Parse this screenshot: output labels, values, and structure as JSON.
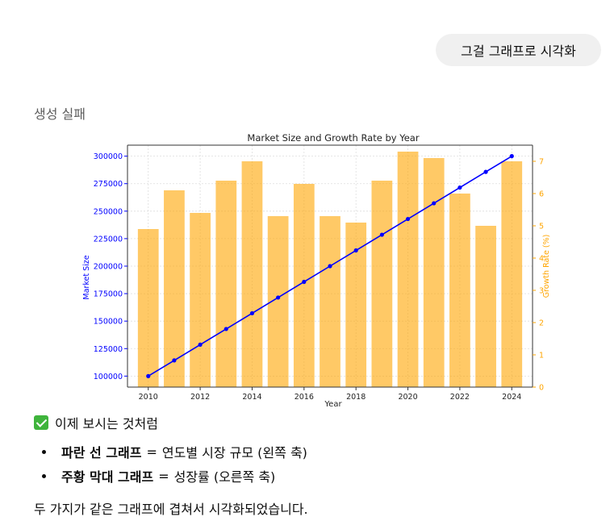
{
  "user_message": "그걸 그래프로 시각화",
  "status": "생성 실패",
  "chart_data": {
    "type": "bar",
    "title": "Market Size and Growth Rate by Year",
    "xlabel": "Year",
    "ylabel": "Market Size",
    "y2label": "Growth Rate (%)",
    "x": [
      2010,
      2011,
      2012,
      2013,
      2014,
      2015,
      2016,
      2017,
      2018,
      2019,
      2020,
      2021,
      2022,
      2023,
      2024
    ],
    "x_ticks": [
      "2010",
      "2012",
      "2014",
      "2016",
      "2018",
      "2020",
      "2022",
      "2024"
    ],
    "y_ticks": [
      "100000",
      "125000",
      "150000",
      "175000",
      "200000",
      "225000",
      "250000",
      "275000",
      "300000"
    ],
    "y2_ticks": [
      "0",
      "1",
      "2",
      "3",
      "4",
      "5",
      "6",
      "7"
    ],
    "ylim": [
      90000,
      310000
    ],
    "y2lim": [
      0,
      7.5
    ],
    "grid": true,
    "series": [
      {
        "name": "Market Size",
        "type": "line",
        "axis": "left",
        "color": "#0000ff",
        "values": [
          100000,
          114286,
          128571,
          142857,
          157143,
          171429,
          185714,
          200000,
          214286,
          228571,
          242857,
          257143,
          271429,
          285714,
          300000
        ]
      },
      {
        "name": "Growth Rate",
        "type": "bar",
        "axis": "right",
        "color": "#ffa500",
        "values": [
          4.9,
          6.1,
          5.4,
          6.4,
          7.0,
          5.3,
          6.3,
          5.3,
          5.1,
          6.4,
          7.3,
          7.1,
          6.0,
          5.0,
          7.0
        ]
      }
    ]
  },
  "summary": {
    "check_icon": "check-mark-button-icon",
    "intro": "이제 보시는 것처럼",
    "items": [
      {
        "label": "파란 선 그래프",
        "sep": "=",
        "text": "연도별 시장 규모 (왼쪽 축)"
      },
      {
        "label": "주황 막대 그래프",
        "sep": "=",
        "text": "성장률 (오른쪽 축)"
      }
    ],
    "closing": "두 가지가 같은 그래프에 겹쳐서 시각화되었습니다."
  }
}
